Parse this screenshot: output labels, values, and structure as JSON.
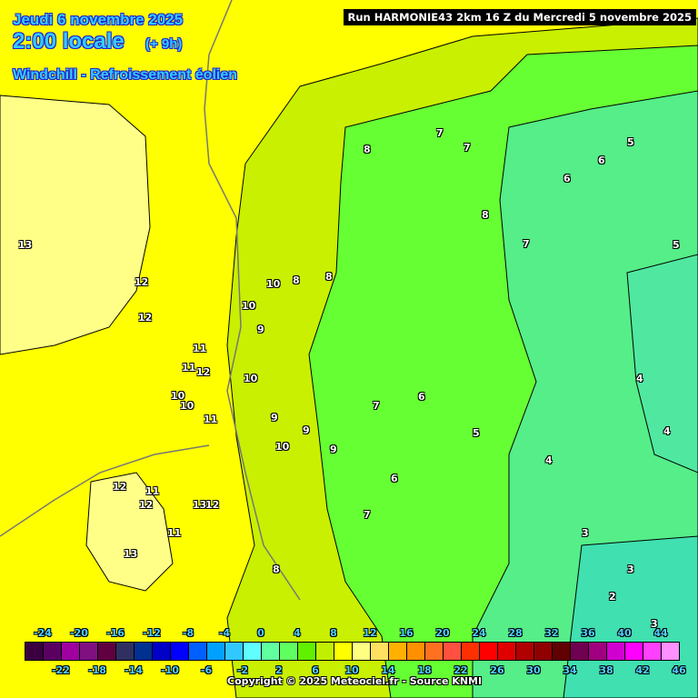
{
  "header": {
    "date": "Jeudi 6 novembre 2025",
    "time": "2:00 locale",
    "lead": "(+ 9h)",
    "parameter": "Windchill - Refroissement éolien",
    "run": "Run HARMONIE43 2km 16 Z du Mercredi 5 novembre 2025"
  },
  "colorbar": {
    "colors": [
      "#3a0040",
      "#5a0060",
      "#a000a0",
      "#801080",
      "#600040",
      "#303060",
      "#003090",
      "#0000c8",
      "#0000ff",
      "#0060ff",
      "#00a0ff",
      "#30c8ff",
      "#60ffff",
      "#60ffa0",
      "#60ff60",
      "#60f000",
      "#c0f000",
      "#ffff00",
      "#ffff80",
      "#ffe060",
      "#ffb000",
      "#ff9000",
      "#ff7020",
      "#ff5040",
      "#ff3000",
      "#ff0000",
      "#e00000",
      "#b00000",
      "#900000",
      "#600000",
      "#700050",
      "#a00080",
      "#d000d0",
      "#ff00ff",
      "#ff40ff",
      "#ff90ff"
    ],
    "top_labels": [
      "-24",
      "-20",
      "-16",
      "-12",
      "-8",
      "-4",
      "0",
      "4",
      "8",
      "12",
      "16",
      "20",
      "24",
      "28",
      "32",
      "36",
      "40",
      "44"
    ],
    "bottom_labels": [
      "-22",
      "-18",
      "-14",
      "-10",
      "-6",
      "-2",
      "2",
      "6",
      "10",
      "14",
      "18",
      "22",
      "26",
      "30",
      "34",
      "38",
      "42",
      "46"
    ]
  },
  "map_labels": [
    "13",
    "12",
    "12",
    "11",
    "11",
    "12",
    "10",
    "10",
    "11",
    "12",
    "11",
    "12",
    "13",
    "12",
    "11",
    "13",
    "10",
    "10",
    "9",
    "9",
    "10",
    "10",
    "8",
    "8",
    "9",
    "9",
    "8",
    "7",
    "7",
    "8",
    "7",
    "6",
    "6",
    "5",
    "5",
    "4",
    "4",
    "3",
    "3",
    "7",
    "6",
    "5",
    "4",
    "3",
    "2",
    "6",
    "8",
    "7"
  ],
  "copyright": "Copyright © 2025 Meteociel.fr - Source KNMI"
}
